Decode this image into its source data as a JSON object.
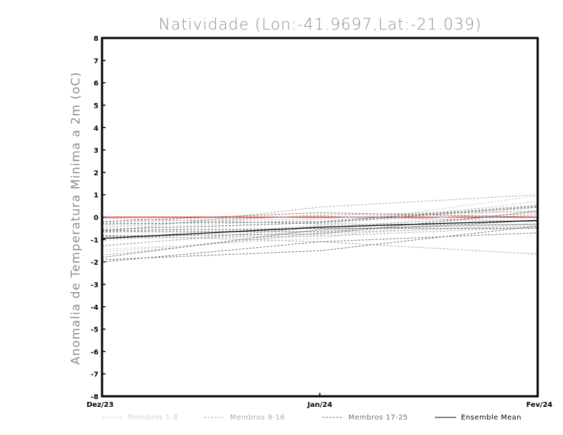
{
  "chart_data": {
    "type": "line",
    "title": "Natividade (Lon:-41.9697,Lat:-21.039)",
    "ylabel": "Anomalia de Temperatura Minima a 2m (oC)",
    "xlabel": "",
    "categories": [
      "Dez/23",
      "Jan/24",
      "Fev/24"
    ],
    "ylim": [
      -8,
      8
    ],
    "yticks": [
      "8",
      "7",
      "6",
      "5",
      "4",
      "3",
      "2",
      "1",
      "0",
      "-1",
      "-2",
      "-3",
      "-4",
      "-5",
      "-6",
      "-7",
      "-8"
    ],
    "grid": false,
    "legend_position": "bottom",
    "legend": [
      {
        "label": "Membros 1-8",
        "color": "#d0d0d0",
        "style": "dashed"
      },
      {
        "label": "Membros 9-16",
        "color": "#a9a9a9",
        "style": "dashed"
      },
      {
        "label": "Membros 17-25",
        "color": "#6e6e6e",
        "style": "dashed"
      },
      {
        "label": "Ensemble Mean",
        "color": "#000000",
        "style": "solid"
      }
    ],
    "zero_line_color": "#e03030",
    "series": [
      {
        "group": 1,
        "values": [
          -1.45,
          -0.95,
          0.3
        ]
      },
      {
        "group": 1,
        "values": [
          -1.25,
          -0.6,
          0.45
        ]
      },
      {
        "group": 1,
        "values": [
          -0.9,
          -0.4,
          0.7
        ]
      },
      {
        "group": 1,
        "values": [
          -0.55,
          -0.1,
          0.55
        ]
      },
      {
        "group": 1,
        "values": [
          -1.55,
          -0.8,
          -0.3
        ]
      },
      {
        "group": 1,
        "values": [
          -0.7,
          -0.2,
          0.15
        ]
      },
      {
        "group": 1,
        "values": [
          -1.05,
          -0.35,
          0.95
        ]
      },
      {
        "group": 1,
        "values": [
          -0.35,
          -0.05,
          0.3
        ]
      },
      {
        "group": 2,
        "values": [
          -0.65,
          0.45,
          1.0
        ]
      },
      {
        "group": 2,
        "values": [
          -1.7,
          -0.7,
          -0.4
        ]
      },
      {
        "group": 2,
        "values": [
          -0.8,
          -1.1,
          -1.65
        ]
      },
      {
        "group": 2,
        "values": [
          -0.25,
          0.05,
          -0.2
        ]
      },
      {
        "group": 2,
        "values": [
          -1.3,
          -0.45,
          0.1
        ]
      },
      {
        "group": 2,
        "values": [
          -0.05,
          -0.3,
          -0.35
        ]
      },
      {
        "group": 2,
        "values": [
          -0.95,
          -0.85,
          -0.45
        ]
      },
      {
        "group": 2,
        "values": [
          -0.45,
          0.1,
          0.25
        ]
      },
      {
        "group": 3,
        "values": [
          -1.9,
          -1.5,
          -0.4
        ]
      },
      {
        "group": 3,
        "values": [
          -2.0,
          -1.1,
          -0.7
        ]
      },
      {
        "group": 3,
        "values": [
          -1.8,
          -0.55,
          -0.3
        ]
      },
      {
        "group": 3,
        "values": [
          -0.65,
          -0.65,
          -0.15
        ]
      },
      {
        "group": 3,
        "values": [
          -0.3,
          -0.2,
          0.5
        ]
      },
      {
        "group": 3,
        "values": [
          -0.85,
          -0.75,
          0.25
        ]
      },
      {
        "group": 3,
        "values": [
          -0.2,
          0.2,
          0.0
        ]
      },
      {
        "group": 3,
        "values": [
          -0.55,
          -0.25,
          0.45
        ]
      },
      {
        "group": 3,
        "values": [
          -0.6,
          -0.5,
          -0.5
        ]
      }
    ],
    "mean": [
      -0.95,
      -0.45,
      -0.15
    ]
  }
}
